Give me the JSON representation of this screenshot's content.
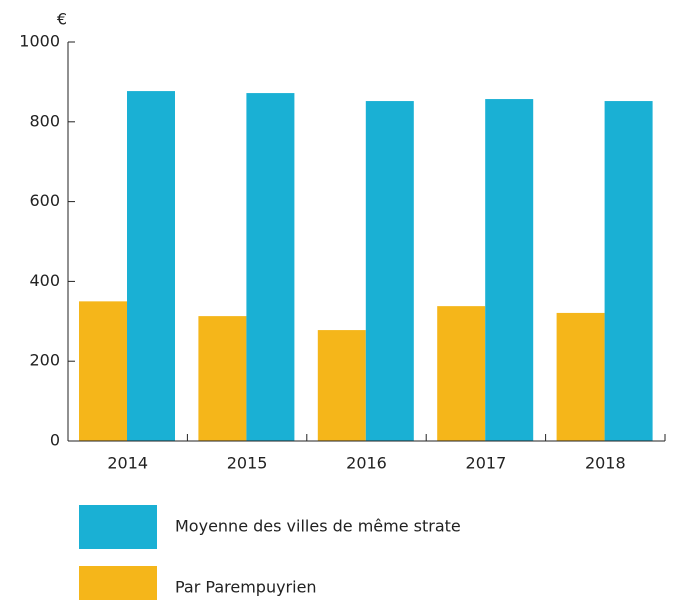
{
  "chart_data": {
    "type": "bar",
    "y_label": "€",
    "categories": [
      "2014",
      "2015",
      "2016",
      "2017",
      "2018"
    ],
    "series": [
      {
        "name": "Par Parempuyrien",
        "color": "#f5b61a",
        "values": [
          350,
          313,
          278,
          338,
          321
        ]
      },
      {
        "name": "Moyenne des villes de même strate",
        "color": "#1ab0d4",
        "values": [
          877,
          872,
          852,
          857,
          852
        ]
      }
    ],
    "ylim": [
      0,
      1000
    ],
    "yticks": [
      0,
      200,
      400,
      600,
      800,
      1000
    ],
    "grid": false
  }
}
